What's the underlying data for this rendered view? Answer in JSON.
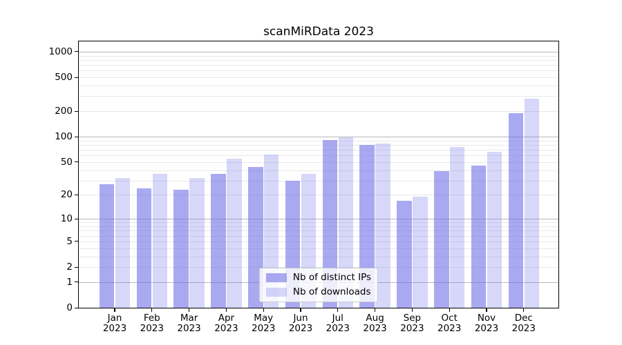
{
  "chart_data": {
    "type": "bar",
    "title": "scanMiRData 2023",
    "categories": [
      "Jan 2023",
      "Feb 2023",
      "Mar 2023",
      "Apr 2023",
      "May 2023",
      "Jun 2023",
      "Jul 2023",
      "Aug 2023",
      "Sep 2023",
      "Oct 2023",
      "Nov 2023",
      "Dec 2023"
    ],
    "series": [
      {
        "name": "Nb of distinct IPs",
        "color": "rgba(112,112,232,0.6)",
        "values": [
          27,
          24,
          23,
          36,
          44,
          30,
          91,
          80,
          17,
          39,
          45,
          190
        ]
      },
      {
        "name": "Nb of downloads",
        "color": "rgba(112,112,232,0.28)",
        "values": [
          32,
          36,
          32,
          55,
          61,
          36,
          99,
          83,
          19,
          75,
          66,
          280
        ]
      }
    ],
    "xlabel": "",
    "ylabel": "",
    "yscale": "log10(value+1)",
    "ylim": [
      0,
      1340
    ],
    "yticks": {
      "values": [
        0,
        1,
        2,
        5,
        10,
        20,
        50,
        100,
        200,
        500,
        1000
      ],
      "labels": [
        "0",
        "1",
        "2",
        "5",
        "10",
        "20",
        "50",
        "100",
        "200",
        "500",
        "1000"
      ]
    },
    "grid": {
      "enabled": true,
      "major_at": [
        1,
        10,
        100,
        1000
      ],
      "minor_at": [
        2,
        3,
        4,
        5,
        6,
        7,
        8,
        9,
        20,
        30,
        40,
        50,
        60,
        70,
        80,
        90,
        200,
        300,
        400,
        500,
        600,
        700,
        800,
        900
      ],
      "major_color": "#b8b8b8",
      "minor_color": "#e8e8e8"
    },
    "legend": {
      "position": "lower center"
    },
    "colors": {
      "background": "#ffffff",
      "axis": "#000000",
      "bar_base": "#7070e8"
    }
  }
}
